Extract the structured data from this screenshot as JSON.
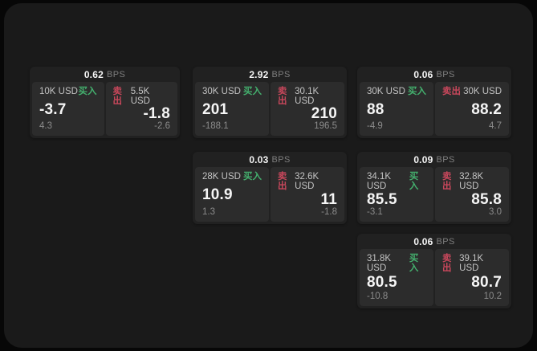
{
  "app": {
    "bps_unit": "BPS",
    "buy_label": "买入",
    "sell_label": "卖出"
  },
  "colors": {
    "buy-color": "#44b06e",
    "sell-color": "#c8475b",
    "value-color": "#f5f5f5",
    "label-color": "#c3c3c3",
    "muted-color": "#8b8b8b",
    "bps-color": "#7e7e7e"
  },
  "cards": [
    {
      "bps": "0.62",
      "buy": {
        "size": "10K USD",
        "value": "-3.7",
        "sub": "4.3"
      },
      "sell": {
        "size": "5.5K USD",
        "value": "-1.8",
        "sub": "-2.6"
      }
    },
    {
      "bps": "2.92",
      "buy": {
        "size": "30K USD",
        "value": "201",
        "sub": "-188.1"
      },
      "sell": {
        "size": "30.1K USD",
        "value": "210",
        "sub": "196.5"
      }
    },
    {
      "bps": "0.06",
      "buy": {
        "size": "30K USD",
        "value": "88",
        "sub": "-4.9"
      },
      "sell": {
        "size": "30K USD",
        "value": "88.2",
        "sub": "4.7"
      }
    },
    {
      "bps": "0.03",
      "buy": {
        "size": "28K USD",
        "value": "10.9",
        "sub": "1.3"
      },
      "sell": {
        "size": "32.6K USD",
        "value": "11",
        "sub": "-1.8"
      }
    },
    {
      "bps": "0.09",
      "buy": {
        "size": "34.1K USD",
        "value": "85.5",
        "sub": "-3.1"
      },
      "sell": {
        "size": "32.8K USD",
        "value": "85.8",
        "sub": "3.0"
      }
    },
    {
      "bps": "0.06",
      "buy": {
        "size": "31.8K USD",
        "value": "80.5",
        "sub": "-10.8"
      },
      "sell": {
        "size": "39.1K USD",
        "value": "80.7",
        "sub": "10.2"
      }
    }
  ]
}
